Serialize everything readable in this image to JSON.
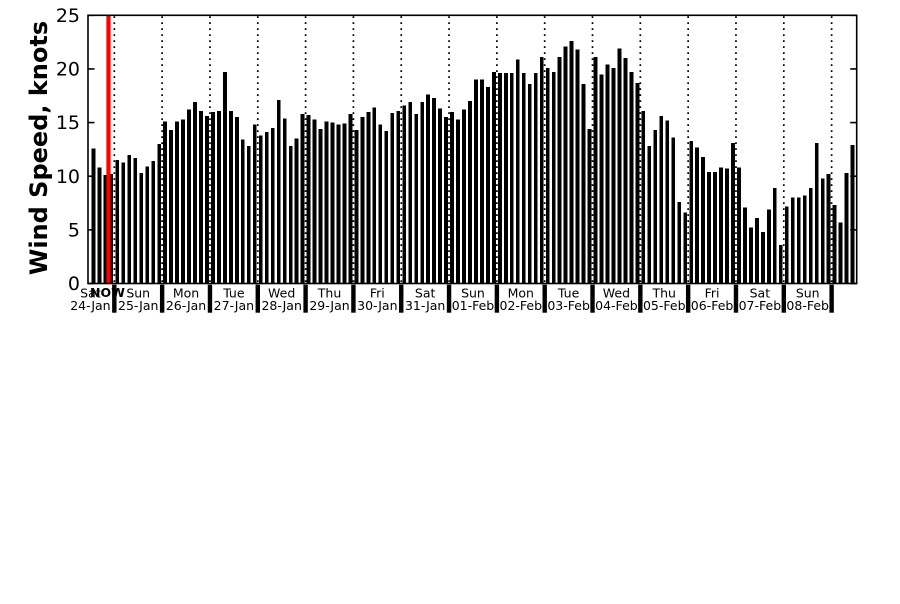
{
  "chart_data": {
    "type": "bar",
    "title": "",
    "ylabel": "Wind Speed, knots",
    "xlabel": "",
    "ylim": [
      0,
      25
    ],
    "y_ticks": [
      0,
      5,
      10,
      15,
      20,
      25
    ],
    "grid": "vertical-dotted-at-day-boundaries",
    "bar_color": "#000000",
    "bars_per_day": 8,
    "sample_interval_hours": 3,
    "days": [
      {
        "weekday": "Sat",
        "date": "24-Jan",
        "values": [
          null,
          null,
          null,
          null,
          12.6,
          10.8,
          10.1,
          10.2
        ]
      },
      {
        "weekday": "Sun",
        "date": "25-Jan",
        "values": [
          11.5,
          11.3,
          12.0,
          11.7,
          10.3,
          10.9,
          11.4,
          13.0
        ]
      },
      {
        "weekday": "Mon",
        "date": "26-Jan",
        "values": [
          15.1,
          14.3,
          15.1,
          15.3,
          16.2,
          16.9,
          16.1,
          15.6
        ]
      },
      {
        "weekday": "Tue",
        "date": "27-Jan",
        "values": [
          16.0,
          16.1,
          19.7,
          16.1,
          15.5,
          13.4,
          12.8,
          14.8
        ]
      },
      {
        "weekday": "Wed",
        "date": "28-Jan",
        "values": [
          13.8,
          14.1,
          14.5,
          17.1,
          15.4,
          12.8,
          13.5,
          15.8
        ]
      },
      {
        "weekday": "Thu",
        "date": "29-Jan",
        "values": [
          15.7,
          15.3,
          14.4,
          15.1,
          15.0,
          14.8,
          14.9,
          15.8
        ]
      },
      {
        "weekday": "Fri",
        "date": "30-Jan",
        "values": [
          14.3,
          15.5,
          16.0,
          16.4,
          14.8,
          14.2,
          15.9,
          16.1
        ]
      },
      {
        "weekday": "Sat",
        "date": "31-Jan",
        "values": [
          16.6,
          16.9,
          15.8,
          16.9,
          17.6,
          17.3,
          16.3,
          15.5
        ]
      },
      {
        "weekday": "Sun",
        "date": "01-Feb",
        "values": [
          16.0,
          15.3,
          16.2,
          17.0,
          19.0,
          19.0,
          18.3,
          19.7
        ]
      },
      {
        "weekday": "Mon",
        "date": "02-Feb",
        "values": [
          19.6,
          19.6,
          19.6,
          20.9,
          19.6,
          18.6,
          19.6,
          21.1
        ]
      },
      {
        "weekday": "Tue",
        "date": "03-Feb",
        "values": [
          20.1,
          19.7,
          21.1,
          22.1,
          22.6,
          21.8,
          18.6,
          14.4
        ]
      },
      {
        "weekday": "Wed",
        "date": "04-Feb",
        "values": [
          21.1,
          19.5,
          20.4,
          20.1,
          21.9,
          21.0,
          19.7,
          18.7
        ]
      },
      {
        "weekday": "Thu",
        "date": "05-Feb",
        "values": [
          16.1,
          12.8,
          14.3,
          15.6,
          15.2,
          13.6,
          7.6,
          6.6
        ]
      },
      {
        "weekday": "Fri",
        "date": "06-Feb",
        "values": [
          13.3,
          12.7,
          11.8,
          10.4,
          10.4,
          10.8,
          10.7,
          13.1
        ]
      },
      {
        "weekday": "Sat",
        "date": "07-Feb",
        "values": [
          10.8,
          7.1,
          5.2,
          6.1,
          4.8,
          6.9,
          8.9,
          3.6
        ]
      },
      {
        "weekday": "Sun",
        "date": "08-Feb",
        "values": [
          7.2,
          8.0,
          8.0,
          8.2,
          8.9,
          13.1,
          9.8,
          10.2
        ]
      },
      {
        "weekday": "",
        "date": "",
        "values": [
          7.3,
          5.7,
          10.3,
          12.9,
          12.8
        ]
      }
    ],
    "now_marker": {
      "label": "NOW",
      "color": "#ff0000",
      "days_from_start": 0.878
    },
    "legend": null,
    "axis_color": "#000000"
  }
}
